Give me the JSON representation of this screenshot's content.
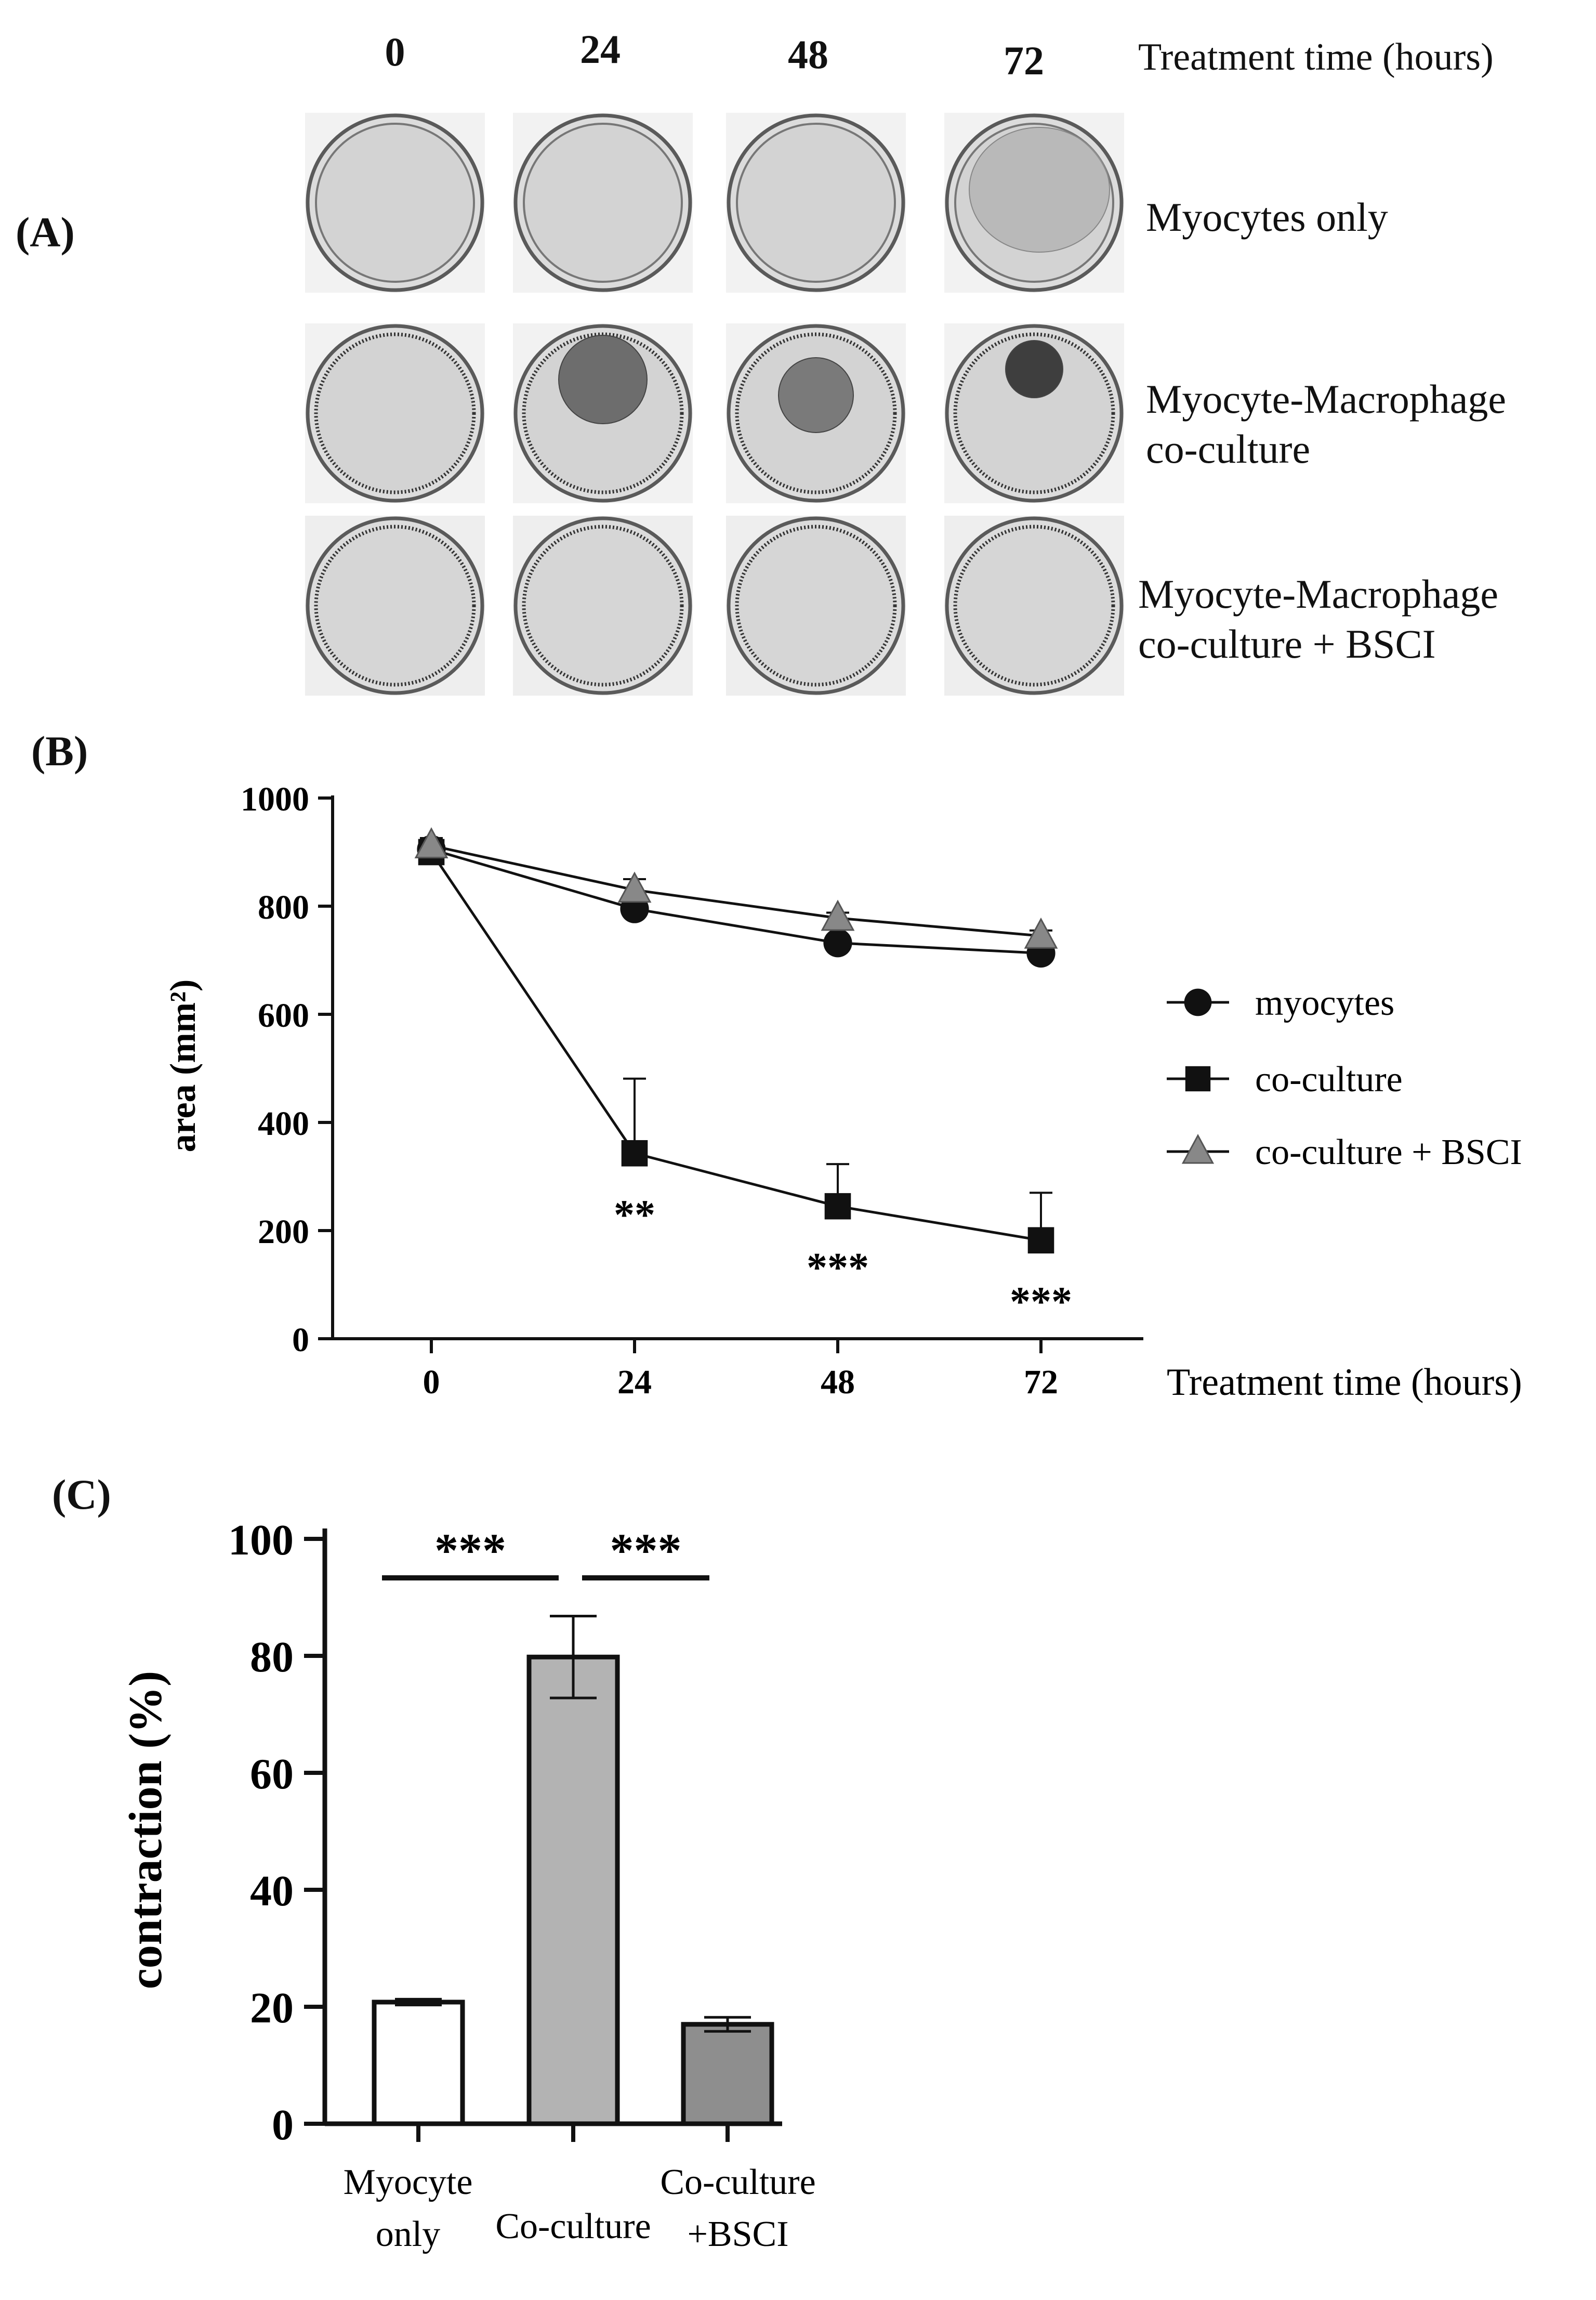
{
  "panel_labels": {
    "a": "(A)",
    "b": "(B)",
    "c": "(C)"
  },
  "panel_a": {
    "time_points": [
      "0",
      "24",
      "48",
      "72"
    ],
    "time_axis_label": "Treatment time (hours)",
    "rows": [
      {
        "label_lines": [
          "Myocytes only"
        ],
        "gel_visible": [
          false,
          false,
          false,
          true
        ],
        "gel_shade": [
          "",
          "",
          "",
          "#a9a9a9"
        ]
      },
      {
        "label_lines": [
          "Myocyte-Macrophage",
          "co-culture"
        ],
        "gel_visible": [
          false,
          true,
          true,
          true
        ],
        "gel_shade": [
          "",
          "#6d6d6d",
          "#7a7a7a",
          "#3e3e3e"
        ]
      },
      {
        "label_lines": [
          "Myocyte-Macrophage",
          "co-culture + BSCI"
        ],
        "gel_visible": [
          false,
          false,
          false,
          false
        ],
        "gel_shade": [
          "",
          "",
          "",
          ""
        ]
      }
    ]
  },
  "chart_data": [
    {
      "type": "line",
      "x": [
        0,
        24,
        48,
        72
      ],
      "x_tick_labels": [
        "0",
        "24",
        "48",
        "72"
      ],
      "xlabel": "Treatment time (hours)",
      "ylabel": "area (mm²)",
      "ylim": [
        0,
        1000
      ],
      "y_ticks": [
        0,
        200,
        400,
        600,
        800,
        1000
      ],
      "series": [
        {
          "name": "myocytes",
          "marker": "circle",
          "color": "#111111",
          "values": [
            905,
            795,
            732,
            713
          ],
          "errors": [
            12,
            8,
            7,
            8
          ]
        },
        {
          "name": "co-culture",
          "marker": "square",
          "color": "#111111",
          "values": [
            900,
            343,
            245,
            182
          ],
          "errors": [
            14,
            138,
            78,
            88
          ]
        },
        {
          "name": "co-culture + BSCI",
          "marker": "triangle",
          "color": "#888888",
          "values": [
            912,
            830,
            778,
            745
          ],
          "errors": [
            14,
            20,
            10,
            10
          ]
        }
      ],
      "significance": [
        "",
        "**",
        "***",
        "***"
      ],
      "legend_position": "right"
    },
    {
      "type": "bar",
      "categories": [
        [
          "Myocyte",
          "only"
        ],
        [
          "Co-culture"
        ],
        [
          "Co-culture",
          "+BSCI"
        ]
      ],
      "values": [
        20.8,
        79.8,
        17
      ],
      "errors": [
        0.5,
        7,
        1.2
      ],
      "bar_colors": [
        "#ffffff",
        "#b3b3b3",
        "#8e8e8e"
      ],
      "ylabel": "contraction (%)",
      "ylim": [
        0,
        100
      ],
      "y_ticks": [
        0,
        20,
        40,
        60,
        80,
        100
      ],
      "significance": [
        {
          "from": 0,
          "to": 1,
          "label": "***"
        },
        {
          "from": 1,
          "to": 2,
          "label": "***"
        }
      ]
    }
  ]
}
